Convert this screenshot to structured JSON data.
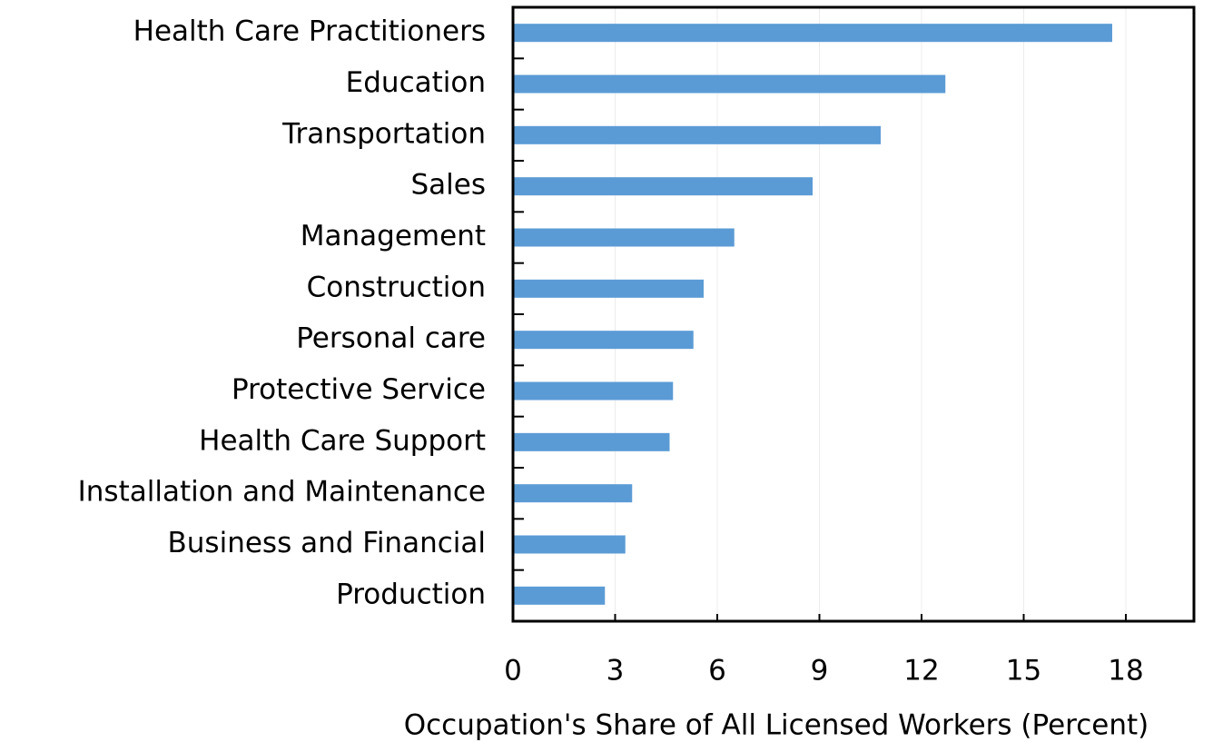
{
  "chart_data": {
    "type": "bar",
    "orientation": "horizontal",
    "xlabel": "Occupation's Share of All Licensed Workers (Percent)",
    "categories": [
      "Health Care Practitioners",
      "Education",
      "Transportation",
      "Sales",
      "Management",
      "Construction",
      "Personal care",
      "Protective Service",
      "Health Care Support",
      "Installation and Maintenance",
      "Business and Financial",
      "Production"
    ],
    "values": [
      17.6,
      12.7,
      10.8,
      8.8,
      6.5,
      5.6,
      5.3,
      4.7,
      4.6,
      3.5,
      3.3,
      2.7
    ],
    "color": "#5b9bd5",
    "xlim": [
      0,
      20
    ],
    "xticks": [
      0,
      3,
      6,
      9,
      12,
      15,
      18
    ],
    "grid": true
  }
}
